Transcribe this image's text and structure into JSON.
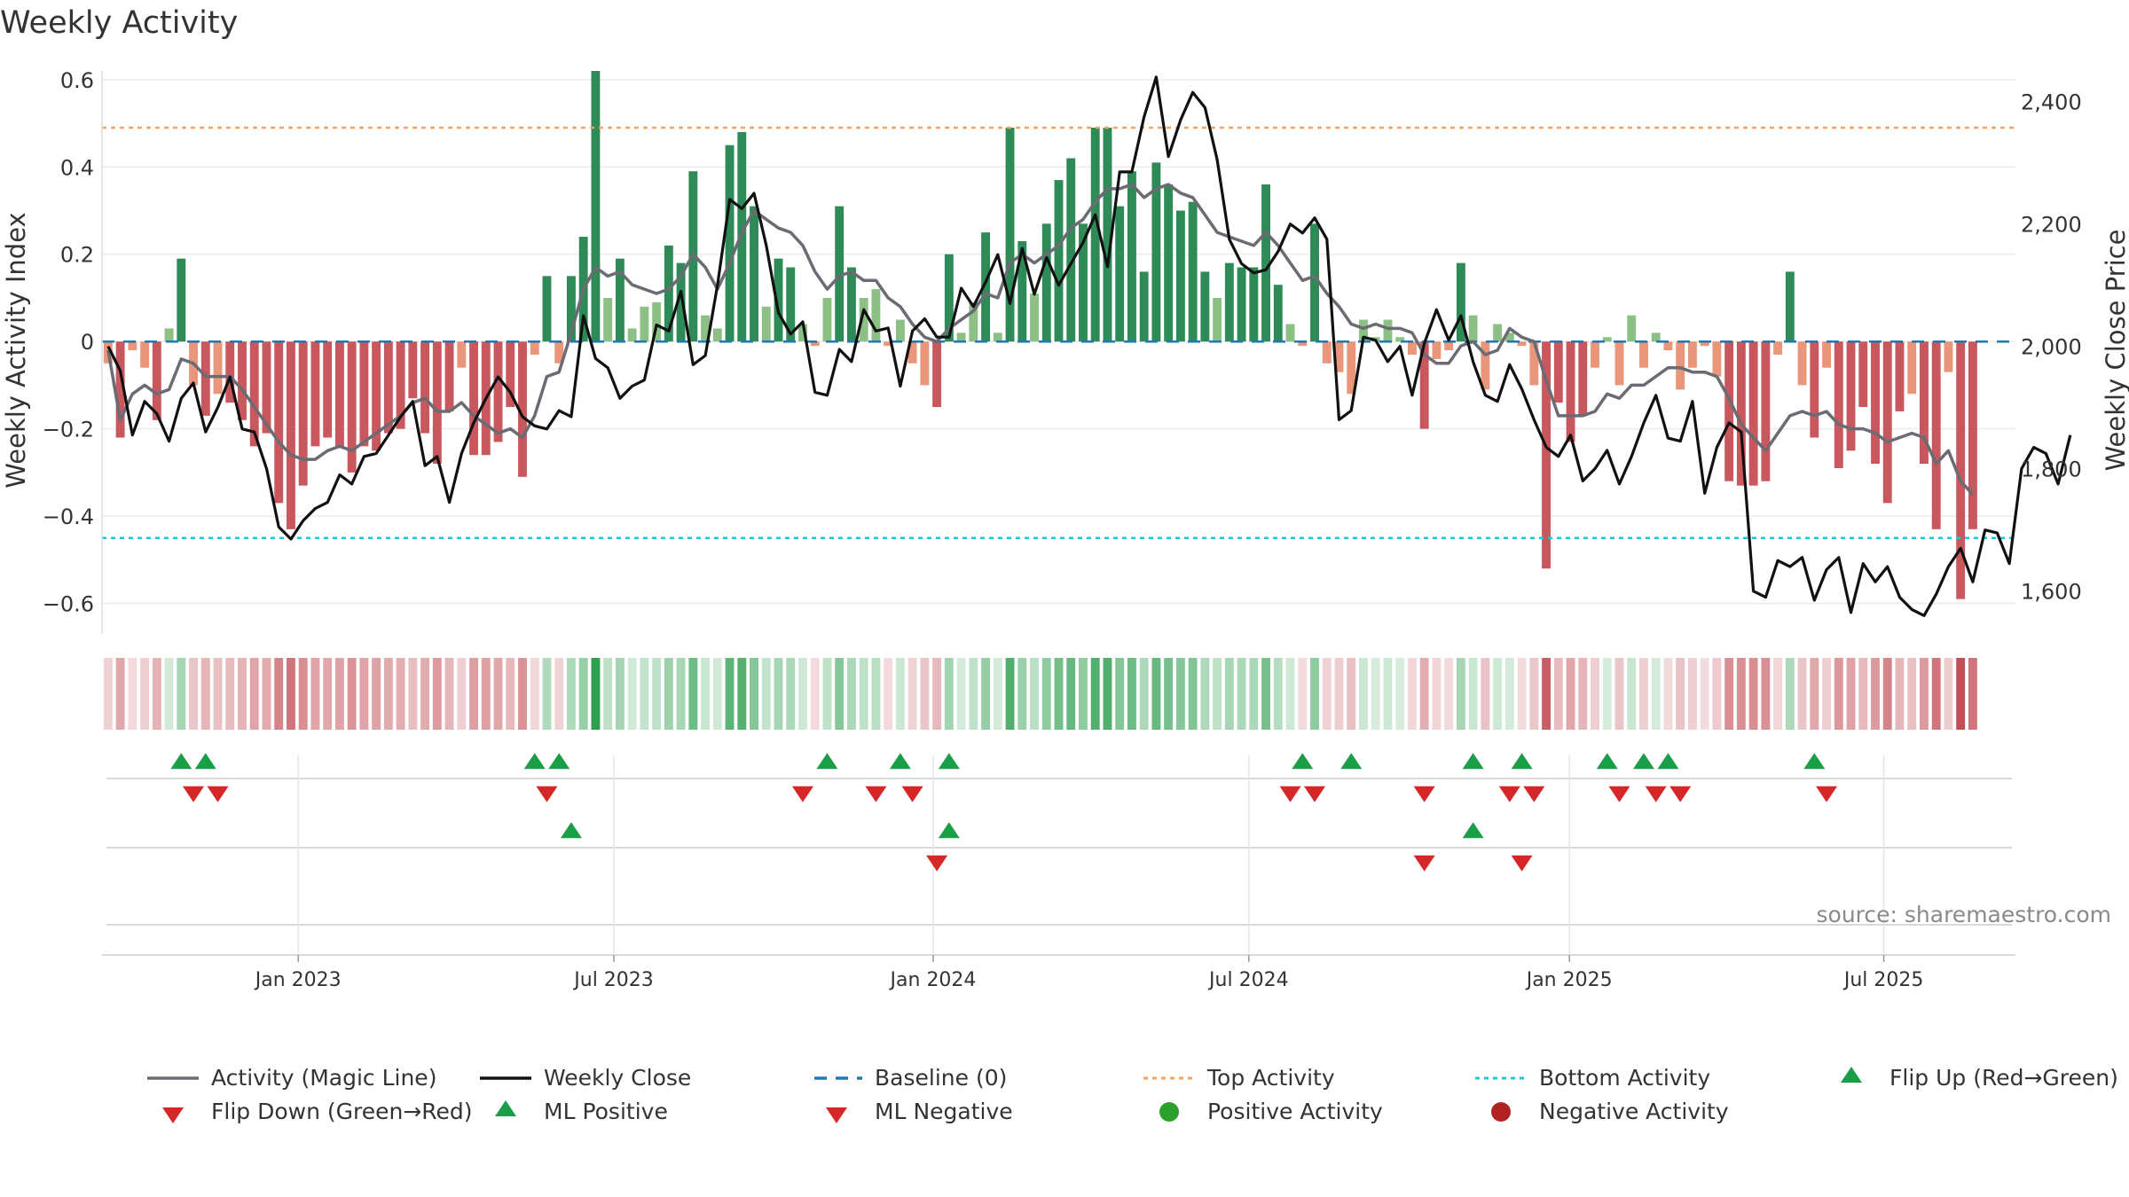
{
  "colors": {
    "green_strong": "#2e8b57",
    "green_light": "#8cc084",
    "red_strong": "#c8575e",
    "red_light": "#e9967a",
    "magic_line": "#6b6b73",
    "close_line": "#111111",
    "baseline": "#1f77b4",
    "top_line": "#f4a261",
    "bottom_line": "#22c7d6",
    "marker_up": "#1a9e48",
    "marker_down": "#d62728",
    "pos_dot": "#2ca02c",
    "neg_dot": "#b22222"
  },
  "chart_data": {
    "type": "bar",
    "title": "Weekly Activity",
    "ylabel": "Weekly Activity Index",
    "y2label": "Weekly Close Price",
    "ylim": [
      -0.67,
      0.62
    ],
    "y2lim": [
      1530,
      2450
    ],
    "yticks": [
      {
        "v": 0.6,
        "label": "0.6"
      },
      {
        "v": 0.4,
        "label": "0.4"
      },
      {
        "v": 0.2,
        "label": "0.2"
      },
      {
        "v": 0,
        "label": "0"
      },
      {
        "v": -0.2,
        "label": "−0.2"
      },
      {
        "v": -0.4,
        "label": "−0.4"
      },
      {
        "v": -0.6,
        "label": "−0.6"
      }
    ],
    "y2ticks": [
      {
        "v": 2400,
        "label": "2,400"
      },
      {
        "v": 2200,
        "label": "2,200"
      },
      {
        "v": 2000,
        "label": "2,000"
      },
      {
        "v": 1800,
        "label": "1,800"
      },
      {
        "v": 1600,
        "label": "1,600"
      }
    ],
    "xlim": [
      -0.5,
      156.5
    ],
    "xticks": [
      {
        "x": 15.6,
        "label": "Jan 2023"
      },
      {
        "x": 41.5,
        "label": "Jul 2023"
      },
      {
        "x": 67.7,
        "label": "Jan 2024"
      },
      {
        "x": 93.6,
        "label": "Jul 2024"
      },
      {
        "x": 119.9,
        "label": "Jan 2025"
      },
      {
        "x": 145.7,
        "label": "Jul 2025"
      }
    ],
    "top_activity": 0.49,
    "bottom_activity": -0.45,
    "baseline": 0,
    "activity": [
      -0.05,
      -0.22,
      -0.02,
      -0.06,
      -0.18,
      0.03,
      0.19,
      -0.1,
      -0.17,
      -0.12,
      -0.14,
      -0.18,
      -0.24,
      -0.21,
      -0.37,
      -0.43,
      -0.33,
      -0.24,
      -0.22,
      -0.24,
      -0.3,
      -0.24,
      -0.25,
      -0.21,
      -0.2,
      -0.13,
      -0.21,
      -0.28,
      -0.16,
      -0.06,
      -0.26,
      -0.26,
      -0.23,
      -0.15,
      -0.31,
      -0.03,
      0.15,
      -0.05,
      0.15,
      0.24,
      0.62,
      0.1,
      0.19,
      0.03,
      0.08,
      0.09,
      0.22,
      0.18,
      0.39,
      0.06,
      0.03,
      0.45,
      0.48,
      0.31,
      0.08,
      0.19,
      0.17,
      0.04,
      -0.01,
      0.1,
      0.31,
      0.17,
      0.1,
      0.12,
      -0.01,
      0.05,
      -0.05,
      -0.1,
      -0.15,
      0.2,
      0.02,
      0.09,
      0.25,
      0.02,
      0.49,
      0.23,
      0.11,
      0.27,
      0.37,
      0.42,
      0.27,
      0.49,
      0.49,
      0.31,
      0.39,
      0.16,
      0.41,
      0.36,
      0.3,
      0.32,
      0.16,
      0.1,
      0.18,
      0.17,
      0.17,
      0.36,
      0.13,
      0.04,
      -0.01,
      0.27,
      -0.05,
      -0.07,
      -0.12,
      0.05,
      0.01,
      0.05,
      0.01,
      -0.03,
      -0.2,
      -0.04,
      -0.02,
      0.18,
      0.06,
      -0.11,
      0.04,
      0.02,
      -0.01,
      -0.1,
      -0.52,
      -0.14,
      -0.23,
      -0.17,
      -0.06,
      0.01,
      -0.1,
      0.06,
      -0.06,
      0.02,
      -0.02,
      -0.11,
      -0.06,
      -0.01,
      -0.08,
      -0.32,
      -0.33,
      -0.33,
      -0.32,
      -0.03,
      0.16,
      -0.1,
      -0.22,
      -0.06,
      -0.29,
      -0.25,
      -0.15,
      -0.28,
      -0.37,
      -0.16,
      -0.12,
      -0.28,
      -0.43,
      -0.07,
      -0.59,
      -0.43
    ],
    "magic_line": [
      -0.02,
      -0.18,
      -0.12,
      -0.1,
      -0.12,
      -0.11,
      -0.04,
      -0.05,
      -0.08,
      -0.08,
      -0.08,
      -0.11,
      -0.15,
      -0.19,
      -0.23,
      -0.26,
      -0.27,
      -0.27,
      -0.25,
      -0.24,
      -0.25,
      -0.23,
      -0.21,
      -0.19,
      -0.17,
      -0.14,
      -0.13,
      -0.16,
      -0.16,
      -0.14,
      -0.17,
      -0.19,
      -0.21,
      -0.2,
      -0.22,
      -0.17,
      -0.08,
      -0.07,
      0.02,
      0.12,
      0.17,
      0.15,
      0.16,
      0.13,
      0.12,
      0.11,
      0.12,
      0.15,
      0.2,
      0.17,
      0.12,
      0.18,
      0.25,
      0.3,
      0.28,
      0.26,
      0.25,
      0.22,
      0.16,
      0.12,
      0.15,
      0.16,
      0.14,
      0.14,
      0.1,
      0.08,
      0.04,
      0.01,
      0.0,
      0.03,
      0.05,
      0.07,
      0.11,
      0.1,
      0.18,
      0.2,
      0.18,
      0.2,
      0.22,
      0.26,
      0.28,
      0.32,
      0.35,
      0.35,
      0.36,
      0.33,
      0.35,
      0.36,
      0.34,
      0.33,
      0.29,
      0.25,
      0.24,
      0.23,
      0.22,
      0.25,
      0.22,
      0.18,
      0.14,
      0.15,
      0.11,
      0.08,
      0.04,
      0.03,
      0.04,
      0.03,
      0.03,
      0.02,
      -0.03,
      -0.05,
      -0.05,
      -0.01,
      0.0,
      -0.03,
      -0.02,
      0.03,
      0.01,
      0.0,
      -0.09,
      -0.17,
      -0.17,
      -0.17,
      -0.16,
      -0.12,
      -0.13,
      -0.1,
      -0.1,
      -0.08,
      -0.06,
      -0.06,
      -0.07,
      -0.07,
      -0.08,
      -0.13,
      -0.19,
      -0.22,
      -0.25,
      -0.21,
      -0.17,
      -0.16,
      -0.17,
      -0.16,
      -0.19,
      -0.2,
      -0.2,
      -0.21,
      -0.23,
      -0.22,
      -0.21,
      -0.22,
      -0.28,
      -0.25,
      -0.32,
      -0.35
    ],
    "weekly_close": [
      2000,
      1960,
      1855,
      1910,
      1890,
      1845,
      1915,
      1940,
      1860,
      1900,
      1950,
      1865,
      1860,
      1800,
      1705,
      1685,
      1715,
      1735,
      1745,
      1790,
      1775,
      1820,
      1825,
      1855,
      1885,
      1910,
      1805,
      1820,
      1745,
      1825,
      1875,
      1915,
      1950,
      1925,
      1885,
      1870,
      1865,
      1895,
      1885,
      2050,
      1980,
      1965,
      1915,
      1935,
      1945,
      2035,
      2025,
      2090,
      1970,
      1985,
      2100,
      2240,
      2225,
      2250,
      2165,
      2055,
      2020,
      2040,
      1925,
      1920,
      1995,
      1975,
      2060,
      2025,
      2030,
      1935,
      2025,
      2045,
      2015,
      2015,
      2095,
      2065,
      2105,
      2150,
      2070,
      2160,
      2085,
      2145,
      2100,
      2135,
      2170,
      2215,
      2130,
      2285,
      2285,
      2375,
      2440,
      2310,
      2370,
      2415,
      2390,
      2305,
      2175,
      2135,
      2120,
      2125,
      2155,
      2200,
      2185,
      2210,
      2175,
      1880,
      1895,
      2015,
      2010,
      1975,
      2000,
      1920,
      2005,
      2060,
      2010,
      2050,
      1975,
      1920,
      1910,
      1970,
      1930,
      1880,
      1835,
      1820,
      1855,
      1780,
      1800,
      1830,
      1775,
      1820,
      1875,
      1920,
      1850,
      1845,
      1910,
      1760,
      1835,
      1875,
      1860,
      1600,
      1590,
      1650,
      1640,
      1655,
      1585,
      1635,
      1655,
      1565,
      1645,
      1615,
      1640,
      1590,
      1570,
      1560,
      1595,
      1640,
      1670,
      1615,
      1700,
      1695,
      1645,
      1800,
      1835,
      1825,
      1775,
      1855
    ],
    "flip_up_row1": [
      6,
      8,
      35,
      37,
      59,
      65,
      69,
      98,
      102,
      112,
      116,
      123,
      126,
      128,
      140
    ],
    "flip_down_row1": [
      7,
      9,
      36,
      57,
      63,
      66,
      97,
      99,
      108,
      115,
      117,
      124,
      127,
      129,
      141
    ],
    "ml_positive_row2": [
      38,
      69,
      112
    ],
    "ml_negative_row2": [
      68,
      108,
      116
    ],
    "source": "source: sharemaestro.com"
  },
  "legend": [
    {
      "label": "Activity (Magic Line)",
      "kind": "solid",
      "color": "#6b6b73"
    },
    {
      "label": "Weekly Close",
      "kind": "solid",
      "color": "#111111"
    },
    {
      "label": "Baseline (0)",
      "kind": "dashed",
      "color": "#1f77b4"
    },
    {
      "label": "Top Activity",
      "kind": "dotted",
      "color": "#f4a261"
    },
    {
      "label": "Bottom Activity",
      "kind": "dotted",
      "color": "#22c7d6"
    },
    {
      "label": "Flip Up (Red→Green)",
      "kind": "tri-up",
      "color": "#1a9e48"
    },
    {
      "label": "Flip Down (Green→Red)",
      "kind": "tri-down",
      "color": "#d62728"
    },
    {
      "label": "ML Positive",
      "kind": "tri-up",
      "color": "#1a9e48"
    },
    {
      "label": "ML Negative",
      "kind": "tri-down",
      "color": "#d62728"
    },
    {
      "label": "Positive Activity",
      "kind": "dot",
      "color": "#2ca02c"
    },
    {
      "label": "Negative Activity",
      "kind": "dot",
      "color": "#b22222"
    }
  ]
}
